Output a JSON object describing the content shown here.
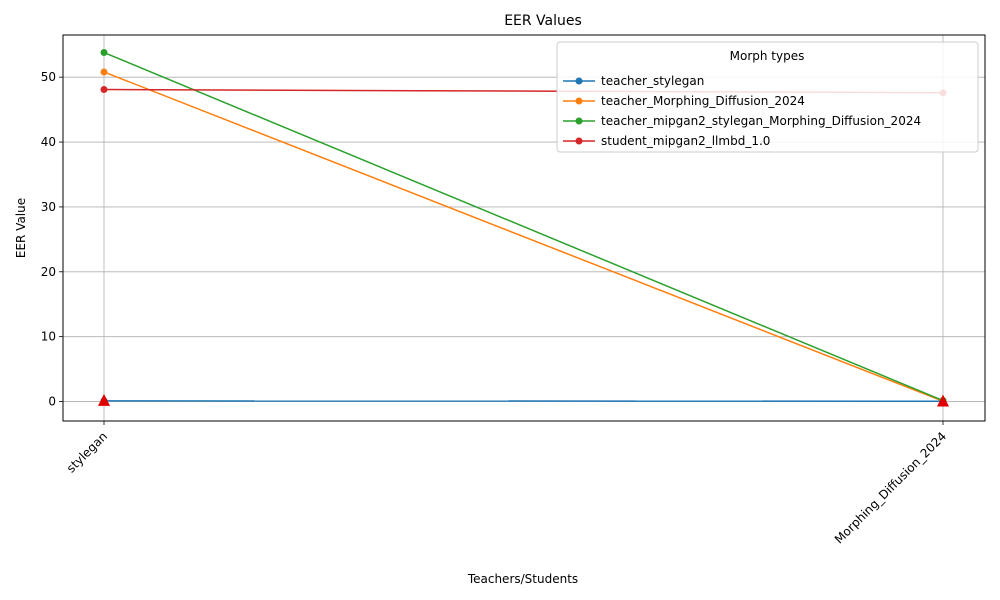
{
  "chart_data": {
    "type": "line",
    "title": "EER Values",
    "xlabel": "Teachers/Students",
    "ylabel": "EER Value",
    "categories": [
      "stylegan",
      "Morphing_Diffusion_2024"
    ],
    "ylim": [
      -3,
      56.5
    ],
    "yticks": [
      0,
      10,
      20,
      30,
      40,
      50
    ],
    "grid": true,
    "legend": {
      "title": "Morph types",
      "placement": "top-right"
    },
    "series": [
      {
        "name": "teacher_stylegan",
        "values": [
          0.1,
          0.05
        ],
        "color": "#1f77b4"
      },
      {
        "name": "teacher_Morphing_Diffusion_2024",
        "values": [
          50.8,
          0.05
        ],
        "color": "#ff7f0e"
      },
      {
        "name": "teacher_mipgan2_stylegan_Morphing_Diffusion_2024",
        "values": [
          53.8,
          0.15
        ],
        "color": "#2ca02c"
      },
      {
        "name": "student_mipgan2_llmbd_1.0",
        "values": [
          48.1,
          47.6
        ],
        "color": "#d62728"
      }
    ],
    "markers": {
      "shape": "triangle",
      "color": "#e00000",
      "points": [
        {
          "x": "stylegan",
          "y": 0.1
        },
        {
          "x": "Morphing_Diffusion_2024",
          "y": 0.0
        }
      ]
    }
  }
}
